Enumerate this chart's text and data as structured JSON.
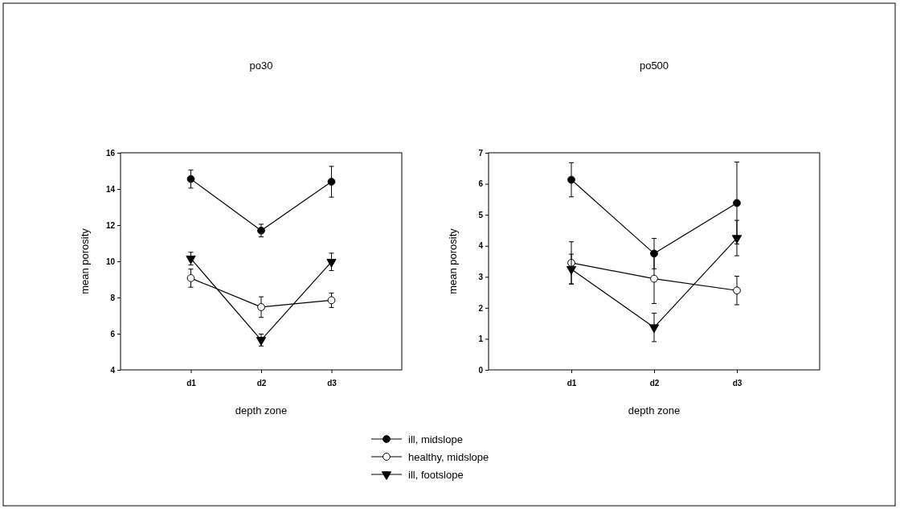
{
  "chart_data": [
    {
      "type": "line",
      "title": "po30",
      "xlabel": "depth zone",
      "ylabel": "mean porosity",
      "categories": [
        "d1",
        "d2",
        "d3"
      ],
      "ylim": [
        4,
        16
      ],
      "yticks": [
        4,
        6,
        8,
        10,
        12,
        14,
        16
      ],
      "legend": "bottom",
      "series": [
        {
          "name": "ill, midslope",
          "color": "#000000",
          "marker": "circle",
          "values": [
            14.55,
            11.7,
            14.4
          ],
          "errors": [
            0.5,
            0.35,
            0.85
          ]
        },
        {
          "name": "healthy, midslope",
          "color": "#ffffff",
          "marker": "circle",
          "values": [
            9.07,
            7.47,
            7.85
          ],
          "errors": [
            0.5,
            0.57,
            0.4
          ]
        },
        {
          "name": "ill, footslope",
          "color": "#000000",
          "marker": "triangle",
          "values": [
            10.15,
            5.65,
            9.97
          ],
          "errors": [
            0.35,
            0.33,
            0.48
          ]
        }
      ]
    },
    {
      "type": "line",
      "title": "po500",
      "xlabel": "depth zone",
      "ylabel": "mean porosity",
      "categories": [
        "d1",
        "d2",
        "d3"
      ],
      "ylim": [
        0,
        7
      ],
      "yticks": [
        0,
        1,
        2,
        3,
        4,
        5,
        6,
        7
      ],
      "series": [
        {
          "color": "#000000",
          "marker": "circle",
          "values": [
            6.13,
            3.75,
            5.38
          ],
          "errors": [
            0.55,
            0.49,
            1.32
          ]
        },
        {
          "color": "#ffffff",
          "marker": "circle",
          "values": [
            3.45,
            2.94,
            2.56
          ],
          "errors": [
            0.68,
            0.8,
            0.46
          ]
        },
        {
          "color": "#000000",
          "marker": "triangle",
          "values": [
            3.25,
            1.37,
            4.25
          ],
          "errors": [
            0.48,
            0.46,
            0.57
          ]
        }
      ]
    }
  ]
}
